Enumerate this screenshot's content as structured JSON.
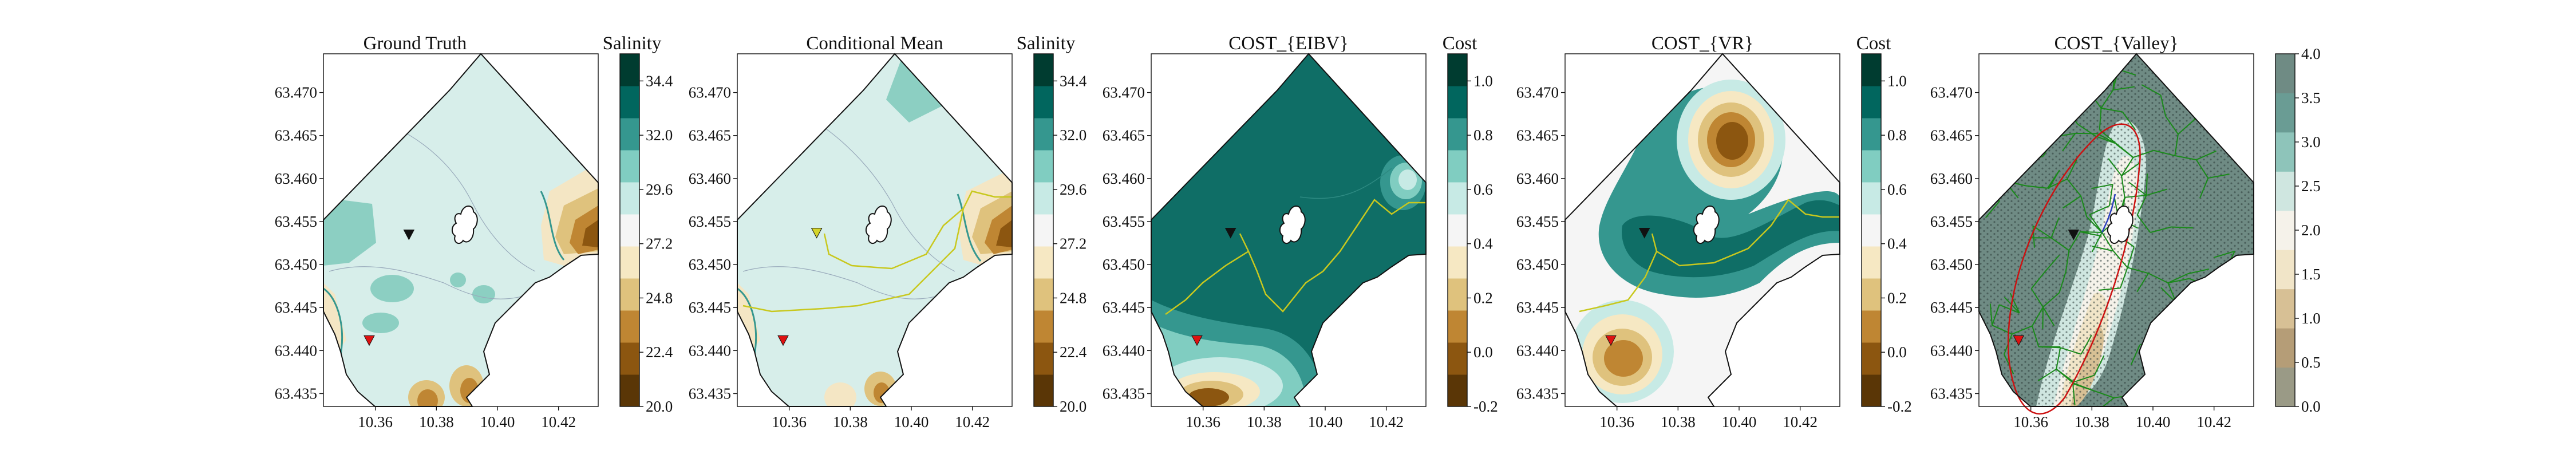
{
  "chart_data": [
    {
      "type": "heatmap",
      "title": "Ground Truth",
      "colorbar_label": "Salinity",
      "colorbar_ticks": [
        "20.0",
        "22.4",
        "24.8",
        "27.2",
        "29.6",
        "32.0",
        "34.4"
      ],
      "colorbar_range": [
        20.0,
        35.6
      ],
      "colormap": [
        "#5a3606",
        "#8c5610",
        "#bf8633",
        "#dfc27d",
        "#f6e8c3",
        "#f5f5f5",
        "#c7eae5",
        "#80cdc1",
        "#35978f",
        "#01665e",
        "#003c30"
      ],
      "y_ticks": [
        "63.470",
        "63.465",
        "63.460",
        "63.455",
        "63.450",
        "63.445",
        "63.440",
        "63.435"
      ],
      "x_ticks": [
        "10.36",
        "10.38",
        "10.40",
        "10.42"
      ],
      "markers": [
        {
          "label": "black-triangle",
          "x": 10.371,
          "y": 63.4535,
          "color": "#111111"
        },
        {
          "label": "red-triangle",
          "x": 10.358,
          "y": 63.4412,
          "color": "#dd1111"
        }
      ]
    },
    {
      "type": "heatmap",
      "title": "Conditional Mean",
      "colorbar_label": "Salinity",
      "colorbar_ticks": [
        "20.0",
        "22.4",
        "24.8",
        "27.2",
        "29.6",
        "32.0",
        "34.4"
      ],
      "colorbar_range": [
        20.0,
        35.6
      ],
      "y_ticks": [
        "63.470",
        "63.465",
        "63.460",
        "63.455",
        "63.450",
        "63.445",
        "63.440",
        "63.435"
      ],
      "x_ticks": [
        "10.36",
        "10.38",
        "10.40",
        "10.42"
      ],
      "path_color": "#c8c81e",
      "markers": [
        {
          "label": "yellow-triangle",
          "x": 10.369,
          "y": 63.4537,
          "color": "#d4d42a"
        },
        {
          "label": "red-triangle",
          "x": 10.358,
          "y": 63.4412,
          "color": "#dd1111"
        }
      ]
    },
    {
      "type": "heatmap",
      "title": "COST_{EIBV}",
      "colorbar_label": "Cost",
      "colorbar_ticks": [
        "-0.2",
        "0.0",
        "0.2",
        "0.4",
        "0.6",
        "0.8",
        "1.0"
      ],
      "colorbar_range": [
        -0.2,
        1.1
      ],
      "y_ticks": [
        "63.470",
        "63.465",
        "63.460",
        "63.455",
        "63.450",
        "63.445",
        "63.440",
        "63.435"
      ],
      "x_ticks": [
        "10.36",
        "10.38",
        "10.40",
        "10.42"
      ],
      "path_color": "#c8c81e",
      "markers": [
        {
          "label": "black-triangle",
          "x": 10.369,
          "y": 63.4537,
          "color": "#111111"
        },
        {
          "label": "red-triangle",
          "x": 10.358,
          "y": 63.4412,
          "color": "#dd1111"
        }
      ]
    },
    {
      "type": "heatmap",
      "title": "COST_{VR}",
      "colorbar_label": "Cost",
      "colorbar_ticks": [
        "-0.2",
        "0.0",
        "0.2",
        "0.4",
        "0.6",
        "0.8",
        "1.0"
      ],
      "colorbar_range": [
        -0.2,
        1.1
      ],
      "y_ticks": [
        "63.470",
        "63.465",
        "63.460",
        "63.455",
        "63.450",
        "63.445",
        "63.440",
        "63.435"
      ],
      "x_ticks": [
        "10.36",
        "10.38",
        "10.40",
        "10.42"
      ],
      "path_color": "#c8c81e",
      "markers": [
        {
          "label": "black-triangle",
          "x": 10.369,
          "y": 63.4537,
          "color": "#111111"
        },
        {
          "label": "red-triangle",
          "x": 10.358,
          "y": 63.4412,
          "color": "#dd1111"
        }
      ]
    },
    {
      "type": "heatmap",
      "title": "COST_{Valley}",
      "colorbar_label": "",
      "colorbar_ticks": [
        "0.0",
        "0.5",
        "1.0",
        "1.5",
        "2.0",
        "2.5",
        "3.0",
        "3.5",
        "4.0"
      ],
      "colorbar_range": [
        0.0,
        4.0
      ],
      "colormap": [
        "#9a9a86",
        "#b59d77",
        "#d7c095",
        "#f1e5c8",
        "#f5f2ea",
        "#cfe6e0",
        "#8ec4ba",
        "#6a9c94",
        "#6f8b84"
      ],
      "y_ticks": [
        "63.470",
        "63.465",
        "63.460",
        "63.455",
        "63.450",
        "63.445",
        "63.440",
        "63.435"
      ],
      "x_ticks": [
        "10.36",
        "10.38",
        "10.40",
        "10.42"
      ],
      "tree_color": "#1a8a1a",
      "ellipse_color": "#cc1111",
      "markers": [
        {
          "label": "black-triangle",
          "x": 10.374,
          "y": 63.4535,
          "color": "#111111"
        },
        {
          "label": "red-triangle",
          "x": 10.356,
          "y": 63.4412,
          "color": "#dd1111"
        }
      ]
    }
  ],
  "domain": {
    "lon": [
      10.343,
      10.433
    ],
    "lat": [
      63.4335,
      63.4745
    ]
  }
}
